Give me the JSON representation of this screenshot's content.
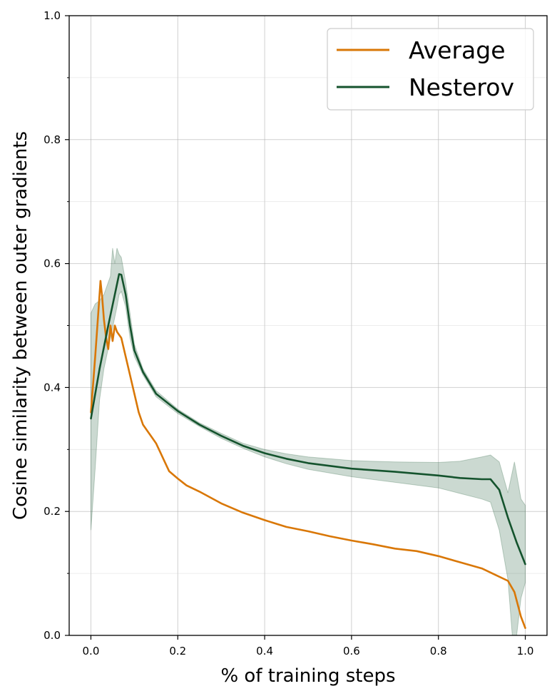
{
  "chart_data": {
    "type": "line",
    "title": "",
    "xlabel": "% of training steps",
    "ylabel": "Cosine similarity between outer gradients",
    "xlim": [
      -0.05,
      1.05
    ],
    "ylim": [
      0.0,
      1.0
    ],
    "xticks": [
      0.0,
      0.2,
      0.4,
      0.6,
      0.8,
      1.0
    ],
    "xtick_labels": [
      "0.0",
      "0.2",
      "0.4",
      "0.6",
      "0.8",
      "1.0"
    ],
    "yticks": [
      0.0,
      0.2,
      0.4,
      0.6,
      0.8,
      1.0
    ],
    "ytick_labels": [
      "0.0",
      "0.2",
      "0.4",
      "0.6",
      "0.8",
      "1.0"
    ],
    "yminor_ticks": [
      0.1,
      0.3,
      0.5,
      0.7,
      0.9
    ],
    "grid": true,
    "legend": "top-right",
    "series": [
      {
        "name": "Average",
        "color": "#d97706",
        "points": [
          [
            0.0,
            0.36
          ],
          [
            0.01,
            0.45
          ],
          [
            0.018,
            0.53
          ],
          [
            0.022,
            0.572
          ],
          [
            0.026,
            0.545
          ],
          [
            0.03,
            0.51
          ],
          [
            0.035,
            0.48
          ],
          [
            0.04,
            0.462
          ],
          [
            0.045,
            0.5
          ],
          [
            0.05,
            0.475
          ],
          [
            0.055,
            0.5
          ],
          [
            0.06,
            0.49
          ],
          [
            0.07,
            0.48
          ],
          [
            0.08,
            0.45
          ],
          [
            0.09,
            0.42
          ],
          [
            0.1,
            0.39
          ],
          [
            0.11,
            0.36
          ],
          [
            0.12,
            0.34
          ],
          [
            0.13,
            0.33
          ],
          [
            0.14,
            0.32
          ],
          [
            0.15,
            0.31
          ],
          [
            0.16,
            0.295
          ],
          [
            0.17,
            0.28
          ],
          [
            0.18,
            0.265
          ],
          [
            0.2,
            0.253
          ],
          [
            0.22,
            0.242
          ],
          [
            0.25,
            0.232
          ],
          [
            0.3,
            0.213
          ],
          [
            0.35,
            0.198
          ],
          [
            0.4,
            0.186
          ],
          [
            0.45,
            0.175
          ],
          [
            0.5,
            0.168
          ],
          [
            0.55,
            0.16
          ],
          [
            0.6,
            0.153
          ],
          [
            0.65,
            0.147
          ],
          [
            0.7,
            0.14
          ],
          [
            0.75,
            0.136
          ],
          [
            0.8,
            0.128
          ],
          [
            0.85,
            0.118
          ],
          [
            0.9,
            0.108
          ],
          [
            0.93,
            0.098
          ],
          [
            0.96,
            0.088
          ],
          [
            0.975,
            0.07
          ],
          [
            0.99,
            0.03
          ],
          [
            1.0,
            0.012
          ]
        ]
      },
      {
        "name": "Nesterov",
        "color": "#14532d",
        "points": [
          [
            0.0,
            0.35
          ],
          [
            0.02,
            0.43
          ],
          [
            0.04,
            0.5
          ],
          [
            0.055,
            0.55
          ],
          [
            0.065,
            0.583
          ],
          [
            0.07,
            0.582
          ],
          [
            0.08,
            0.55
          ],
          [
            0.09,
            0.5
          ],
          [
            0.1,
            0.46
          ],
          [
            0.12,
            0.425
          ],
          [
            0.15,
            0.39
          ],
          [
            0.2,
            0.362
          ],
          [
            0.25,
            0.34
          ],
          [
            0.3,
            0.322
          ],
          [
            0.35,
            0.306
          ],
          [
            0.4,
            0.294
          ],
          [
            0.45,
            0.285
          ],
          [
            0.5,
            0.278
          ],
          [
            0.6,
            0.269
          ],
          [
            0.7,
            0.264
          ],
          [
            0.8,
            0.258
          ],
          [
            0.85,
            0.254
          ],
          [
            0.9,
            0.252
          ],
          [
            0.92,
            0.252
          ],
          [
            0.94,
            0.235
          ],
          [
            0.96,
            0.19
          ],
          [
            0.98,
            0.15
          ],
          [
            1.0,
            0.115
          ]
        ],
        "band_upper": [
          [
            0.0,
            0.52
          ],
          [
            0.01,
            0.535
          ],
          [
            0.02,
            0.54
          ],
          [
            0.03,
            0.55
          ],
          [
            0.045,
            0.58
          ],
          [
            0.05,
            0.625
          ],
          [
            0.055,
            0.6
          ],
          [
            0.06,
            0.625
          ],
          [
            0.065,
            0.615
          ],
          [
            0.07,
            0.61
          ],
          [
            0.08,
            0.57
          ],
          [
            0.09,
            0.52
          ],
          [
            0.1,
            0.47
          ],
          [
            0.12,
            0.43
          ],
          [
            0.15,
            0.395
          ],
          [
            0.2,
            0.365
          ],
          [
            0.25,
            0.343
          ],
          [
            0.3,
            0.326
          ],
          [
            0.35,
            0.31
          ],
          [
            0.4,
            0.3
          ],
          [
            0.45,
            0.293
          ],
          [
            0.5,
            0.288
          ],
          [
            0.6,
            0.282
          ],
          [
            0.7,
            0.28
          ],
          [
            0.8,
            0.279
          ],
          [
            0.85,
            0.281
          ],
          [
            0.9,
            0.288
          ],
          [
            0.92,
            0.291
          ],
          [
            0.94,
            0.28
          ],
          [
            0.96,
            0.23
          ],
          [
            0.975,
            0.28
          ],
          [
            0.99,
            0.22
          ],
          [
            1.0,
            0.21
          ]
        ],
        "band_lower": [
          [
            0.0,
            0.17
          ],
          [
            0.01,
            0.27
          ],
          [
            0.02,
            0.38
          ],
          [
            0.03,
            0.43
          ],
          [
            0.045,
            0.48
          ],
          [
            0.06,
            0.53
          ],
          [
            0.065,
            0.55
          ],
          [
            0.07,
            0.555
          ],
          [
            0.08,
            0.53
          ],
          [
            0.09,
            0.48
          ],
          [
            0.1,
            0.45
          ],
          [
            0.12,
            0.42
          ],
          [
            0.15,
            0.385
          ],
          [
            0.2,
            0.358
          ],
          [
            0.25,
            0.337
          ],
          [
            0.3,
            0.318
          ],
          [
            0.35,
            0.302
          ],
          [
            0.4,
            0.288
          ],
          [
            0.45,
            0.277
          ],
          [
            0.5,
            0.268
          ],
          [
            0.6,
            0.256
          ],
          [
            0.7,
            0.247
          ],
          [
            0.8,
            0.238
          ],
          [
            0.85,
            0.229
          ],
          [
            0.9,
            0.22
          ],
          [
            0.92,
            0.215
          ],
          [
            0.94,
            0.17
          ],
          [
            0.96,
            0.09
          ],
          [
            0.97,
            0.0
          ],
          [
            0.98,
            0.0
          ],
          [
            0.99,
            0.06
          ],
          [
            1.0,
            0.085
          ]
        ],
        "band_color": "#14532d",
        "band_opacity": 0.22
      }
    ]
  }
}
